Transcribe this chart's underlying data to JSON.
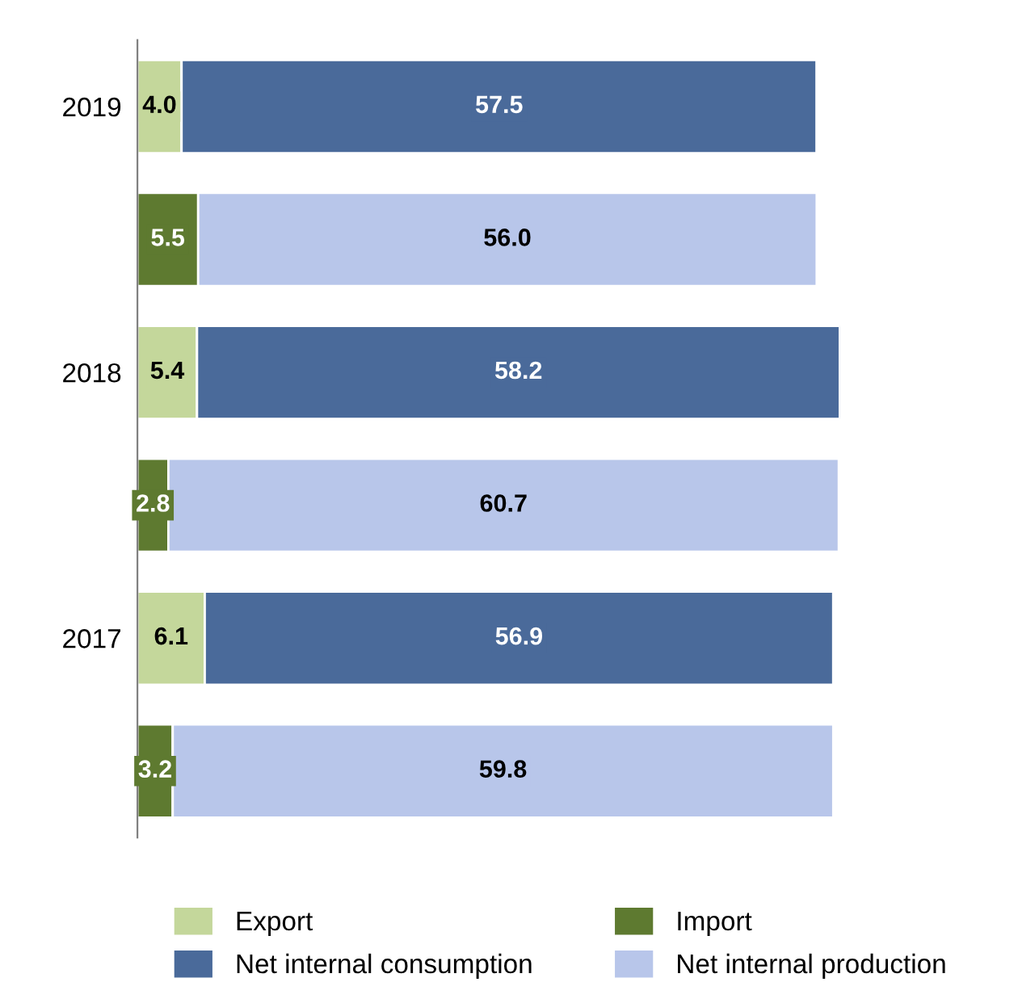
{
  "chart_data": {
    "type": "bar",
    "orientation": "horizontal",
    "stacked": true,
    "legend": "bottom",
    "tick_labels": "y",
    "grid": false,
    "categories": [
      "2019",
      null,
      "2018",
      null,
      "2017",
      null
    ],
    "series": [
      {
        "name": "Export",
        "color": "#c4d79b",
        "values": [
          4.0,
          null,
          5.4,
          null,
          6.1,
          null
        ],
        "value_labels": [
          "4.0",
          null,
          "5.4",
          null,
          "6.1",
          null
        ]
      },
      {
        "name": "Import",
        "color": "#5e7a30",
        "values": [
          null,
          5.5,
          null,
          2.8,
          null,
          3.2
        ],
        "value_labels": [
          null,
          "5.5",
          null,
          "2.8",
          null,
          "3.2"
        ]
      },
      {
        "name": "Net internal consumption",
        "color": "#4a6a9a",
        "values": [
          57.5,
          null,
          58.2,
          null,
          56.9,
          null
        ],
        "value_labels": [
          "57.5",
          null,
          "58.2",
          null,
          "56.9",
          null
        ]
      },
      {
        "name": "Net internal production",
        "color": "#b8c6ea",
        "values": [
          null,
          56.0,
          null,
          60.7,
          null,
          59.8
        ],
        "value_labels": [
          null,
          "56.0",
          null,
          "60.7",
          null,
          "59.8"
        ]
      }
    ]
  }
}
